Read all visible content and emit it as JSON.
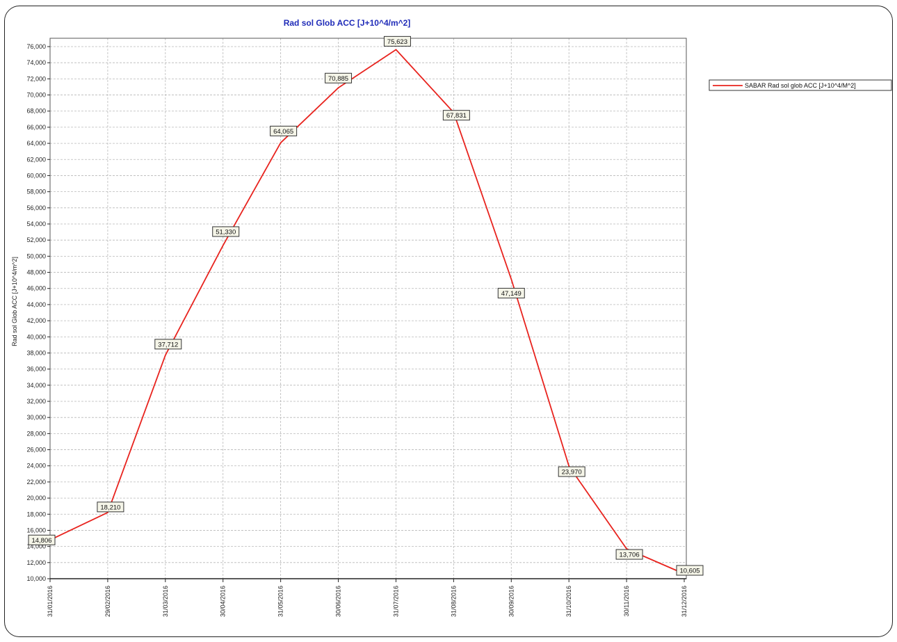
{
  "colors": {
    "series": "#e8231e",
    "title": "#1f2bb8",
    "grid": "#b8b8b8",
    "axis": "#222222",
    "label_bg": "#f5f5e8"
  },
  "chart_data": {
    "type": "line",
    "title": "Rad sol Glob ACC [J+10^4/m^2]",
    "xlabel": "",
    "ylabel": "Rad sol Glob ACC [J+10^4/m^2]",
    "x": [
      "31/01/2016",
      "29/02/2016",
      "31/03/2016",
      "30/04/2016",
      "31/05/2016",
      "30/06/2016",
      "31/07/2016",
      "31/08/2016",
      "30/09/2016",
      "31/10/2016",
      "30/11/2016",
      "31/12/2016"
    ],
    "series": [
      {
        "name": "SABAR Rad sol glob ACC [J+10^4/M^2]",
        "values": [
          14806,
          18210,
          37712,
          51330,
          64065,
          70885,
          75623,
          67831,
          47149,
          23970,
          13706,
          10605
        ],
        "labels": [
          "14,806",
          "18,210",
          "37,712",
          "51,330",
          "64,065",
          "70,885",
          "75,623",
          "67,831",
          "47,149",
          "23,970",
          "13,706",
          "10,605"
        ]
      }
    ],
    "ylim": [
      10000,
      76000
    ],
    "yticks": [
      "76,000",
      "74,000",
      "72,000",
      "70,000",
      "68,000",
      "66,000",
      "64,000",
      "62,000",
      "60,000",
      "58,000",
      "56,000",
      "54,000",
      "52,000",
      "50,000",
      "48,000",
      "46,000",
      "44,000",
      "42,000",
      "40,000",
      "38,000",
      "36,000",
      "34,000",
      "32,000",
      "30,000",
      "28,000",
      "26,000",
      "24,000",
      "22,000",
      "20,000",
      "18,000",
      "16,000",
      "14,000",
      "12,000",
      "10,000"
    ],
    "grid": true,
    "legend_position": "right"
  }
}
